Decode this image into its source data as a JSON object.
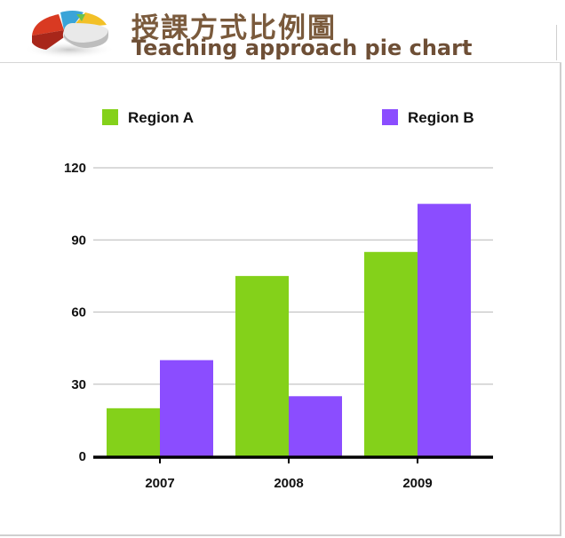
{
  "header": {
    "title_zh": "授課方式比例圖",
    "title_en": "Teaching approach pie chart",
    "logo_icon": "pie-chart-logo-icon"
  },
  "chart_data": {
    "type": "bar",
    "categories": [
      "2007",
      "2008",
      "2009"
    ],
    "series": [
      {
        "name": "Region A",
        "values": [
          20,
          75,
          85
        ],
        "color": "#84d11a"
      },
      {
        "name": "Region B",
        "values": [
          40,
          25,
          105
        ],
        "color": "#8b4dff"
      }
    ],
    "title": "",
    "xlabel": "",
    "ylabel": "",
    "ylim": [
      0,
      120
    ],
    "yticks": [
      0,
      30,
      60,
      90,
      120
    ],
    "grid": true,
    "legend_position": "top"
  }
}
